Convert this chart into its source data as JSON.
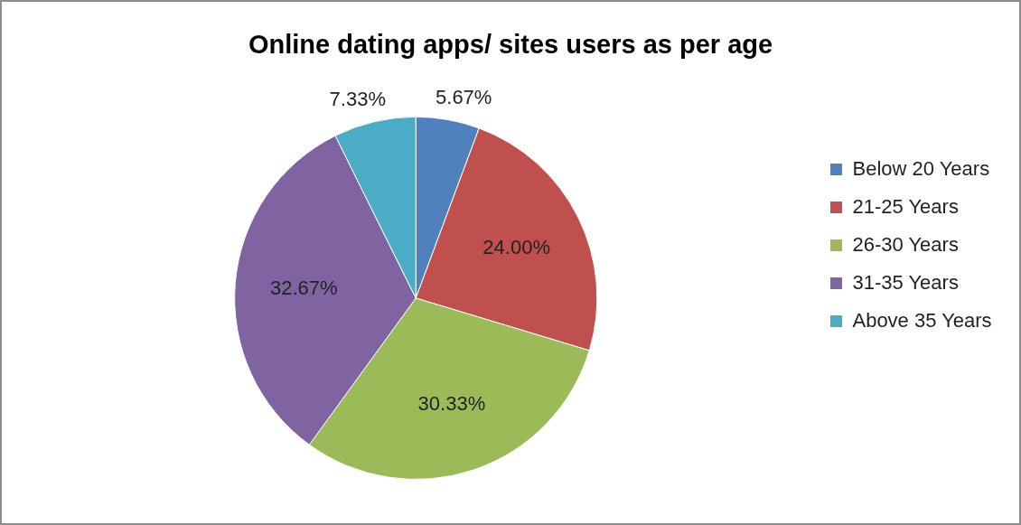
{
  "chart_data": {
    "type": "pie",
    "title": "Online dating apps/ sites users as per age",
    "categories": [
      "Below 20 Years",
      "21-25 Years",
      "26-30 Years",
      "31-35 Years",
      "Above 35 Years"
    ],
    "values": [
      5.67,
      24.0,
      30.33,
      32.67,
      7.33
    ],
    "value_labels": [
      "5.67%",
      "24.00%",
      "30.33%",
      "32.67%",
      "7.33%"
    ],
    "colors": [
      "#4f81bd",
      "#c0504d",
      "#9bbb59",
      "#8064a2",
      "#4bacc6"
    ],
    "legend": "right"
  }
}
